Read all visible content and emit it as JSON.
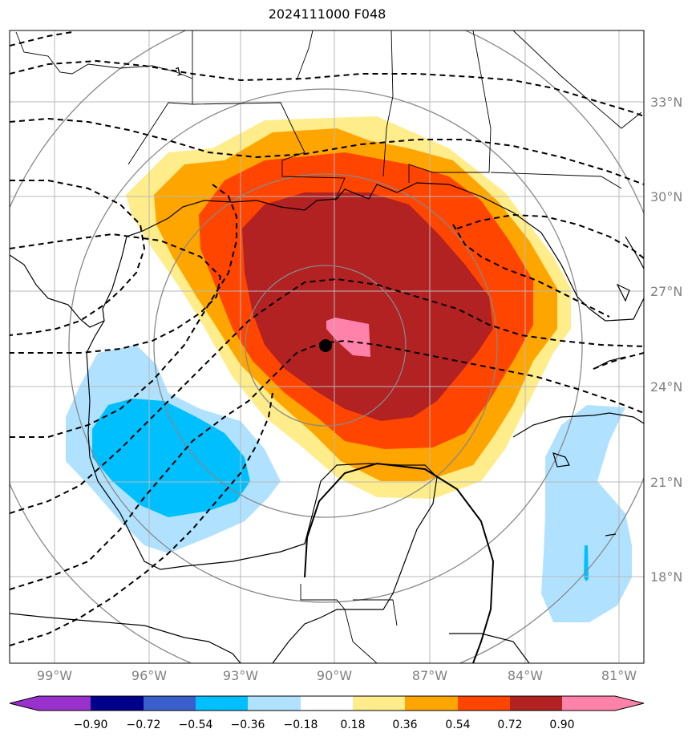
{
  "title": "2024111000 F048",
  "map": {
    "lon_range": [
      -100,
      -80
    ],
    "lat_range": [
      15,
      36
    ],
    "lon_labels": [
      "99°W",
      "96°W",
      "93°W",
      "90°W",
      "87°W",
      "84°W",
      "81°W"
    ],
    "lat_labels": [
      "33°N",
      "30°N",
      "27°N",
      "24°N",
      "21°N",
      "18°N"
    ],
    "center_marker": {
      "lon": -90.3,
      "lat": 25.2
    },
    "contour_label": "1"
  },
  "colorbar": {
    "ticks": [
      "−0.90",
      "−0.72",
      "−0.54",
      "−0.36",
      "−0.18",
      "0.18",
      "0.36",
      "0.54",
      "0.72",
      "0.90"
    ],
    "colors": [
      "#9932cc",
      "#00008b",
      "#3a5fcd",
      "#00bfff",
      "#b0e2ff",
      "#ffffff",
      "#ffec8b",
      "#ffa500",
      "#ff4500",
      "#b22222",
      "#ff82ab"
    ]
  },
  "shading": {
    "c_light_yellow": "#ffec8b",
    "c_orange": "#ffa500",
    "c_red_orange": "#ff4500",
    "c_dark_red": "#b22222",
    "c_pink": "#ff82ab",
    "c_light_blue": "#b0e2ff",
    "c_blue": "#00bfff"
  }
}
